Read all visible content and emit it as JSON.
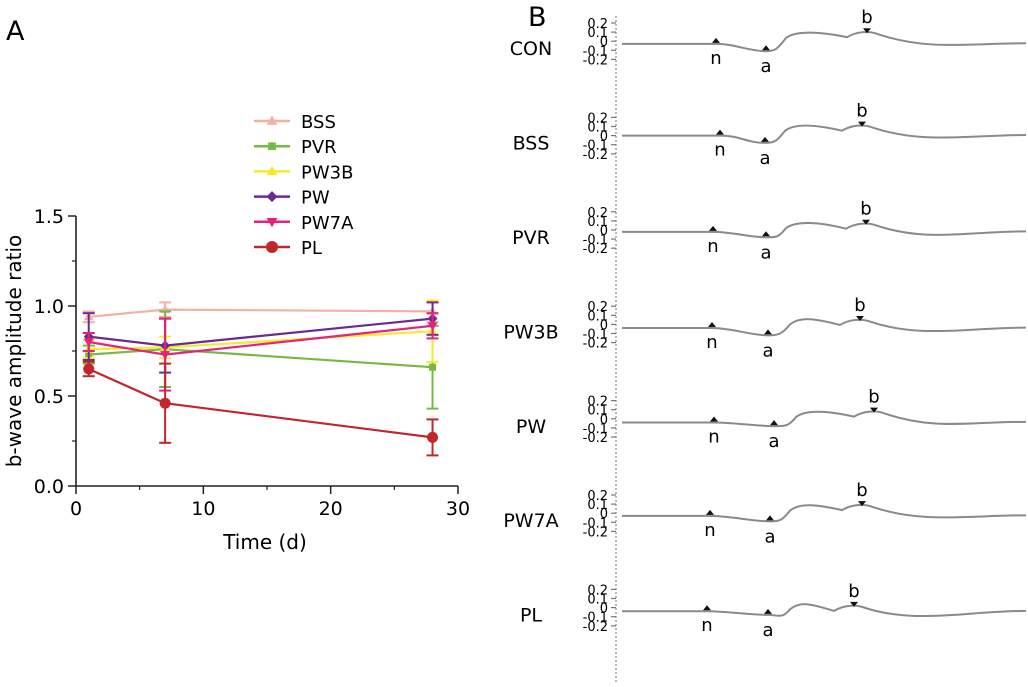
{
  "figure": {
    "panel_a_letter": "A",
    "panel_b_letter": "B"
  },
  "chart_data": [
    {
      "type": "line",
      "panel": "A",
      "xlabel": "Time (d)",
      "ylabel": "b-wave amplitude ratio",
      "xlim": [
        0,
        30
      ],
      "ylim": [
        0,
        1.5
      ],
      "x_ticks": [
        "0",
        "10",
        "20",
        "30"
      ],
      "y_ticks": [
        "0.0",
        "0.5",
        "1.0",
        "1.5"
      ],
      "grid": false,
      "legend_position": "top-right",
      "x": [
        1,
        7,
        28
      ],
      "series": [
        {
          "name": "BSS",
          "color": "#f4b0a4",
          "marker": "triangle-up",
          "values": [
            0.94,
            0.98,
            0.97
          ],
          "errors": [
            0.03,
            0.04,
            0.06
          ]
        },
        {
          "name": "PVR",
          "color": "#77b943",
          "marker": "square",
          "values": [
            0.73,
            0.76,
            0.66
          ],
          "errors": [
            0.05,
            0.21,
            0.23
          ]
        },
        {
          "name": "PW3B",
          "color": "#f4ec2a",
          "marker": "triangle-up",
          "values": [
            0.76,
            0.77,
            0.86
          ],
          "errors": [
            0.05,
            0.06,
            0.17
          ]
        },
        {
          "name": "PW",
          "color": "#6b2a8f",
          "marker": "diamond",
          "values": [
            0.83,
            0.78,
            0.93
          ],
          "errors": [
            0.13,
            0.15,
            0.09
          ]
        },
        {
          "name": "PW7A",
          "color": "#e4237d",
          "marker": "triangle-down",
          "values": [
            0.8,
            0.73,
            0.89
          ],
          "errors": [
            0.05,
            0.2,
            0.07
          ]
        },
        {
          "name": "PL",
          "color": "#c0272d",
          "marker": "circle",
          "values": [
            0.65,
            0.46,
            0.27
          ],
          "errors": [
            0.04,
            0.22,
            0.1
          ]
        }
      ]
    },
    {
      "type": "line",
      "panel": "B",
      "y_ticks": [
        "0.2",
        "0.1",
        "0",
        "-0.1",
        "-0.2"
      ],
      "trace_color": "#8a8a8a",
      "groups": [
        {
          "label": "CON",
          "n": "n",
          "a": "a",
          "b": "b",
          "baseline": -0.03,
          "a_amp": -0.08,
          "b_amp": 0.14
        },
        {
          "label": "BSS",
          "n": "n",
          "a": "a",
          "b": "b",
          "baseline": 0.0,
          "a_amp": -0.08,
          "b_amp": 0.12
        },
        {
          "label": "PVR",
          "n": "n",
          "a": "a",
          "b": "b",
          "baseline": -0.02,
          "a_amp": -0.06,
          "b_amp": 0.1
        },
        {
          "label": "PW3B",
          "n": "n",
          "a": "a",
          "b": "b",
          "baseline": -0.04,
          "a_amp": -0.08,
          "b_amp": 0.1
        },
        {
          "label": "PW",
          "n": "n",
          "a": "a",
          "b": "b",
          "baseline": -0.04,
          "a_amp": -0.04,
          "b_amp": 0.13
        },
        {
          "label": "PW7A",
          "n": "n",
          "a": "a",
          "b": "b",
          "baseline": -0.03,
          "a_amp": -0.06,
          "b_amp": 0.13
        },
        {
          "label": "PL",
          "n": "n",
          "a": "a",
          "b": "b",
          "baseline": -0.04,
          "a_amp": -0.04,
          "b_amp": 0.07
        }
      ]
    }
  ]
}
